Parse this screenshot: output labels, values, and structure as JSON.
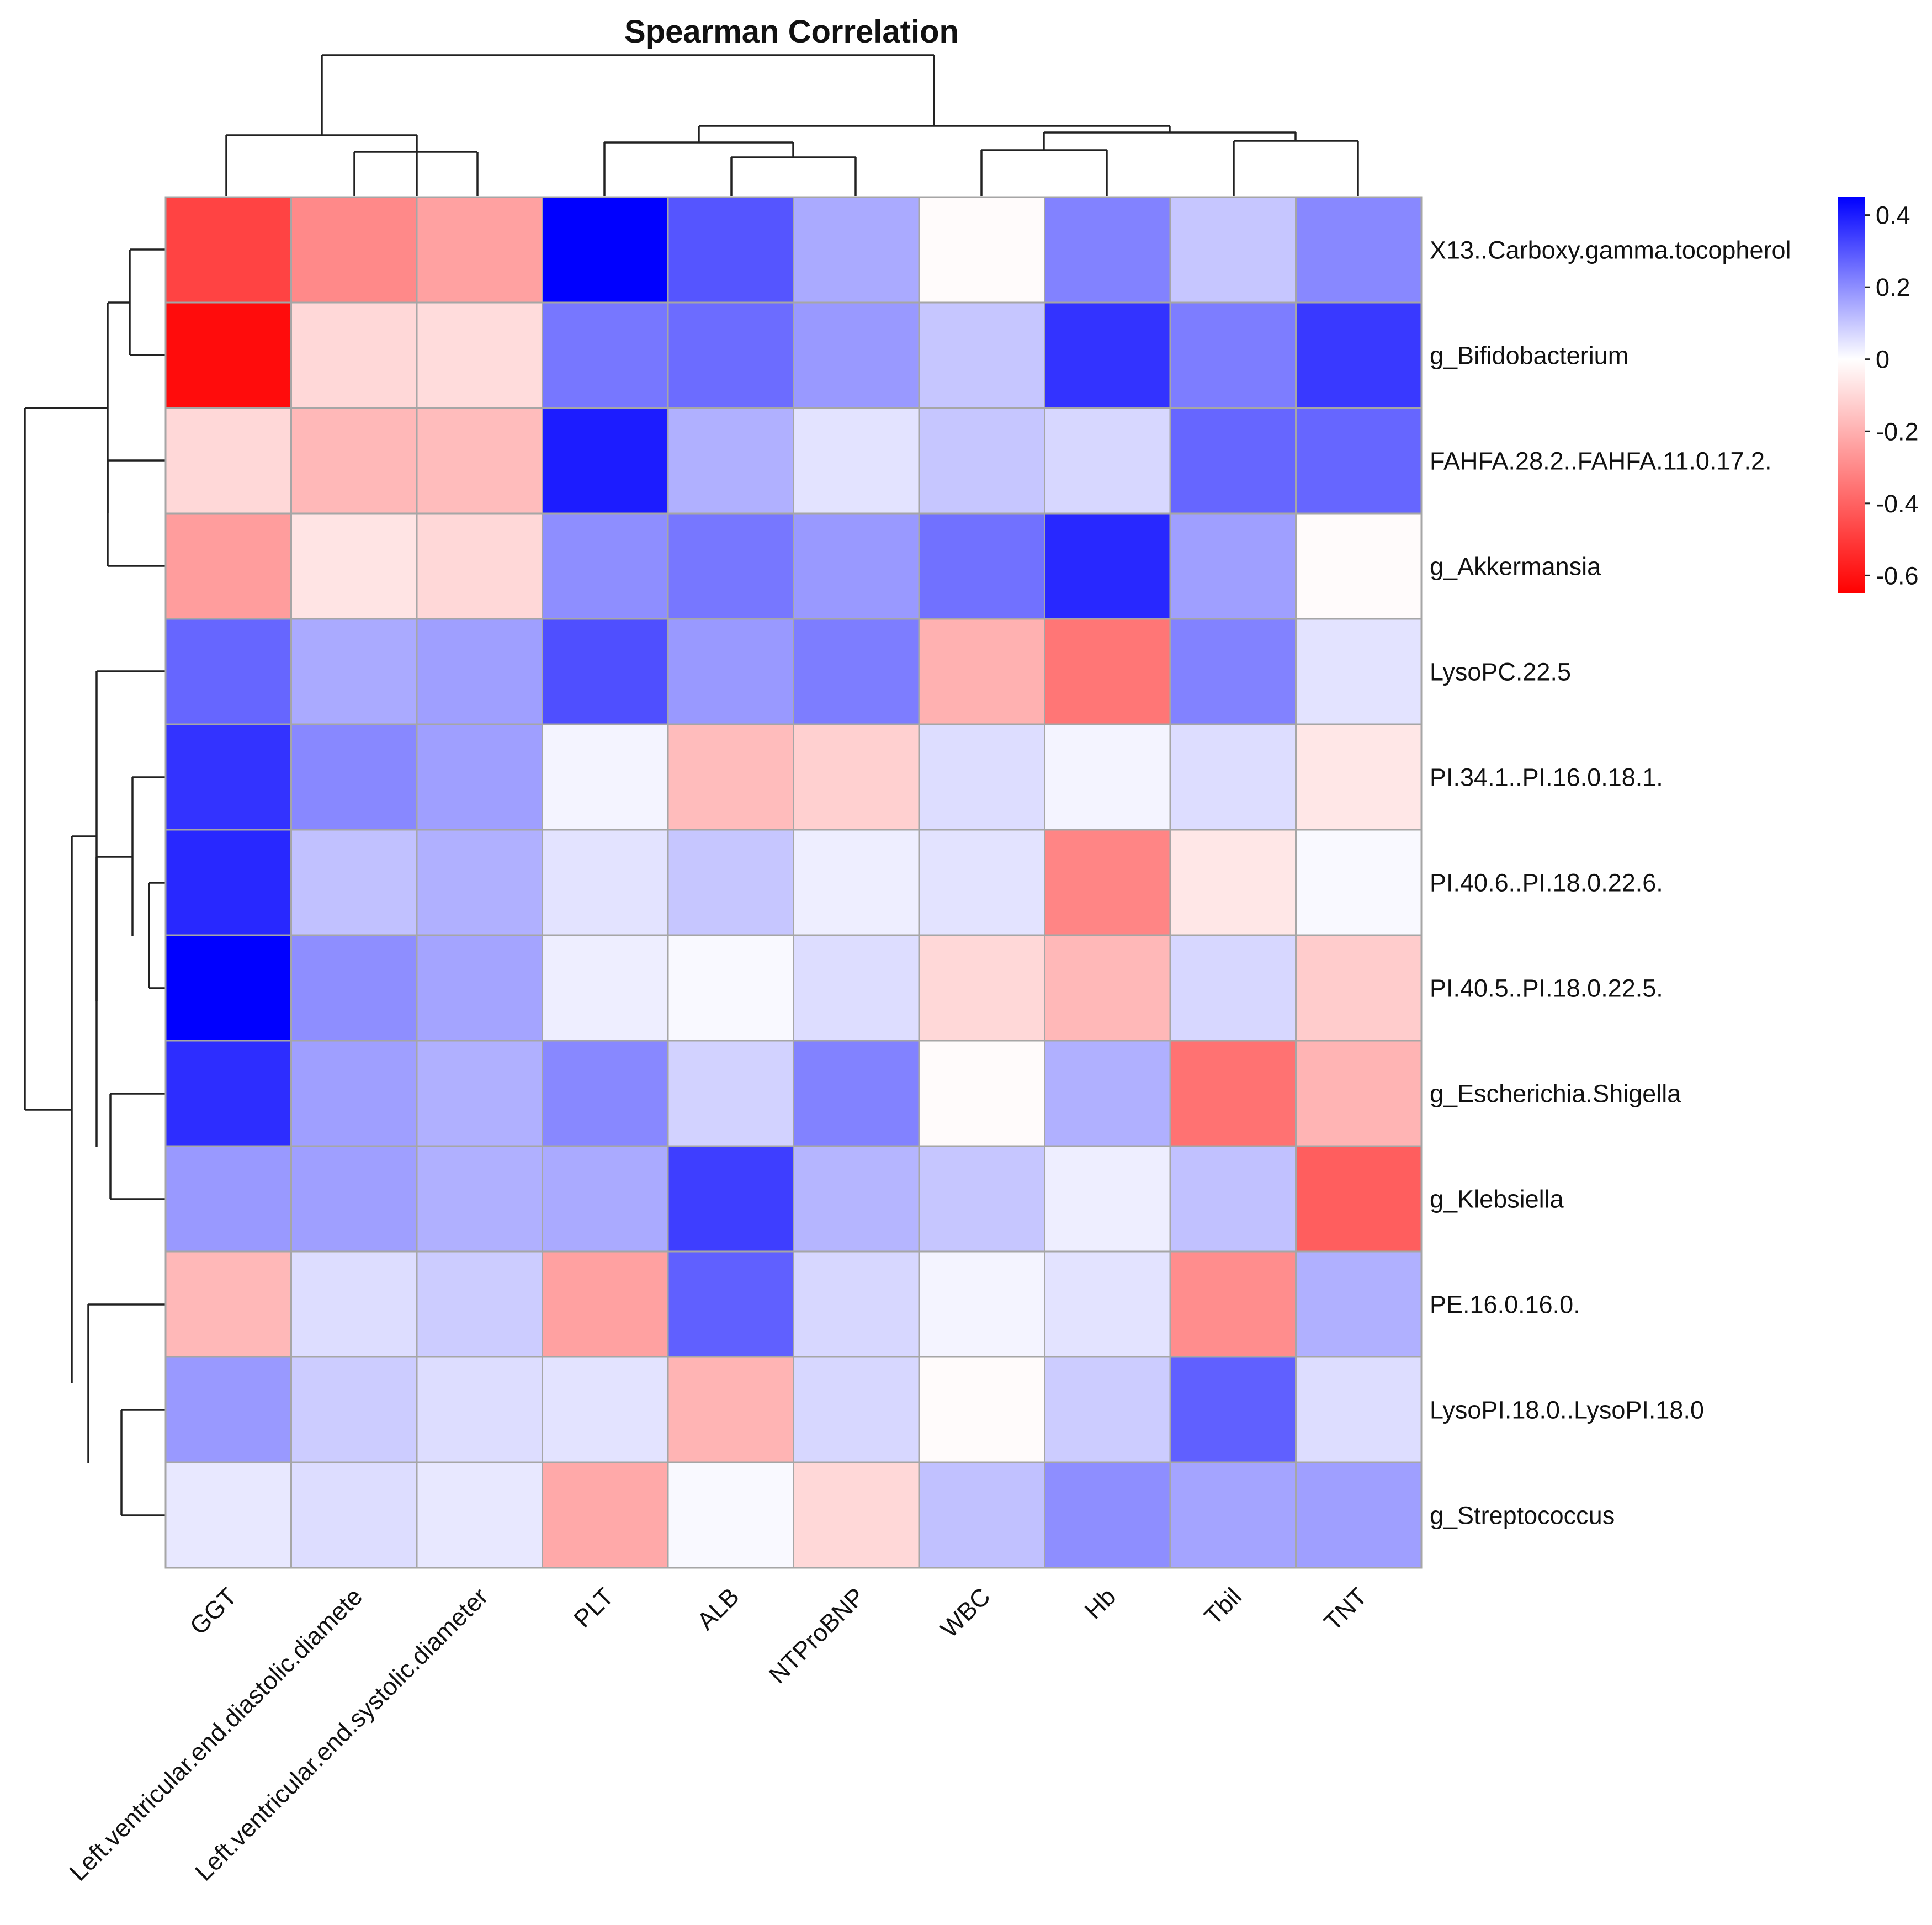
{
  "chart_data": {
    "type": "heatmap",
    "title": "Spearman Correlation",
    "columns": [
      "GGT",
      "Left.ventricular.end.diastolic.diamete",
      "Left.ventricular.end.systolic.diameter",
      "PLT",
      "ALB",
      "NTProBNP",
      "WBC",
      "Hb",
      "Tbil",
      "TNT"
    ],
    "rows": [
      "X13..Carboxy.gamma.tocopherol",
      "g_Bifidobacterium",
      "FAHFA.28.2..FAHFA.11.0.17.2.",
      "g_Akkermansia",
      "LysoPC.22.5",
      "PI.34.1..PI.16.0.18.1.",
      "PI.40.6..PI.18.0.22.6.",
      "PI.40.5..PI.18.0.22.5.",
      "g_Escherichia.Shigella",
      "g_Klebsiella",
      "PE.16.0.16.0.",
      "LysoPI.18.0..LysoPI.18.0",
      "g_Streptococcus"
    ],
    "values": [
      [
        -0.48,
        -0.3,
        -0.24,
        0.45,
        0.3,
        0.15,
        -0.01,
        0.22,
        0.1,
        0.21
      ],
      [
        -0.62,
        -0.1,
        -0.09,
        0.24,
        0.26,
        0.18,
        0.1,
        0.36,
        0.23,
        0.35
      ],
      [
        -0.1,
        -0.18,
        -0.17,
        0.4,
        0.14,
        0.05,
        0.1,
        0.07,
        0.27,
        0.27
      ],
      [
        -0.25,
        -0.07,
        -0.1,
        0.2,
        0.24,
        0.18,
        0.25,
        0.38,
        0.17,
        -0.01
      ],
      [
        0.27,
        0.15,
        0.17,
        0.31,
        0.18,
        0.23,
        -0.2,
        -0.35,
        0.22,
        0.05
      ],
      [
        0.36,
        0.21,
        0.17,
        0.02,
        -0.17,
        -0.12,
        0.06,
        0.02,
        0.06,
        -0.06
      ],
      [
        0.38,
        0.11,
        0.14,
        0.05,
        0.1,
        0.03,
        0.05,
        -0.31,
        -0.06,
        0.01
      ],
      [
        0.45,
        0.2,
        0.16,
        0.03,
        0.01,
        0.06,
        -0.1,
        -0.18,
        0.07,
        -0.13
      ],
      [
        0.37,
        0.17,
        0.14,
        0.21,
        0.08,
        0.22,
        -0.01,
        0.14,
        -0.36,
        -0.19
      ],
      [
        0.18,
        0.17,
        0.14,
        0.15,
        0.34,
        0.13,
        0.1,
        0.03,
        0.11,
        -0.41
      ],
      [
        -0.18,
        0.06,
        0.09,
        -0.24,
        0.28,
        0.07,
        0.02,
        0.05,
        -0.29,
        0.14
      ],
      [
        0.18,
        0.09,
        0.06,
        0.05,
        -0.19,
        0.07,
        -0.01,
        0.09,
        0.28,
        0.06
      ],
      [
        0.04,
        0.06,
        0.04,
        -0.22,
        0.01,
        -0.1,
        0.11,
        0.2,
        0.16,
        0.17
      ]
    ],
    "colorbar": {
      "min": -0.65,
      "max": 0.45,
      "ticks": [
        0.4,
        0.2,
        0,
        -0.2,
        -0.4,
        -0.6
      ],
      "tick_labels": [
        "0.4",
        "0.2",
        "0",
        "-0.2",
        "-0.4",
        "-0.6"
      ],
      "low_color": "#ff0000",
      "mid_color": "#ffffff",
      "high_color": "#0000ff"
    },
    "column_order_note": "clustered by column dendrogram (top)",
    "row_order_note": "clustered by row dendrogram (left)"
  }
}
